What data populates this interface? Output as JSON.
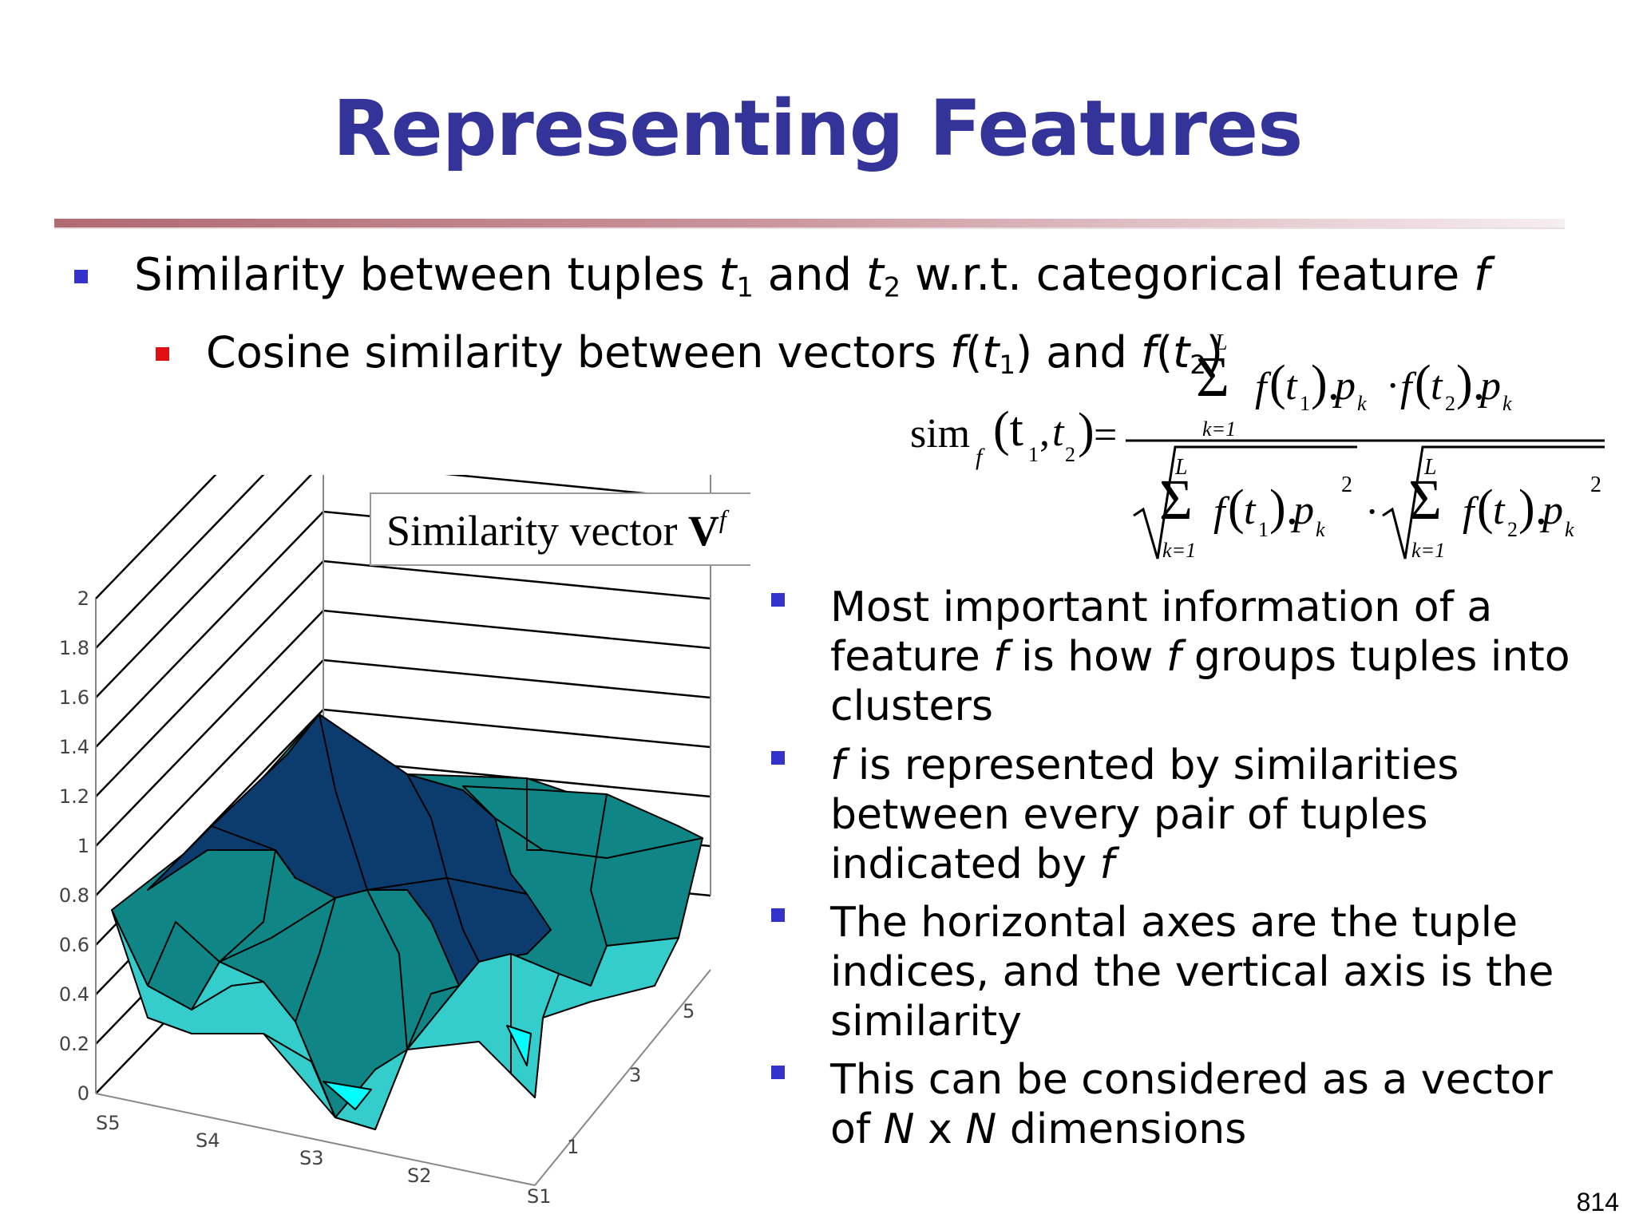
{
  "title": "Representing Features",
  "bullets": {
    "b1": {
      "part1": "Similarity between tuples ",
      "t": "t",
      "sub1": "1",
      "and": " and ",
      "sub2": "2",
      "part2": " w.r.t. categorical feature ",
      "f": "f"
    },
    "b2": {
      "part1": "Cosine similarity between vectors ",
      "f": "f",
      "open": "(",
      "t": "t",
      "sub1": "1",
      "close_and": ") and ",
      "sub2": "2",
      "close": ")"
    },
    "right": [
      {
        "a": "Most important information of a feature ",
        "f1": "f",
        "b": " is how ",
        "f2": "f",
        "c": " groups tuples into clusters"
      },
      {
        "f1": "f",
        "a": "  is represented by similarities between every pair of tuples indicated by ",
        "f2": "f"
      },
      {
        "a": "The horizontal axes are the tuple indices, and the vertical axis is the similarity"
      },
      {
        "a": "This can be considered as a vector of ",
        "n1": "N",
        "x": " x ",
        "n2": "N",
        "b": " dimensions"
      }
    ]
  },
  "formula": {
    "sim": "sim",
    "sub_f": "f",
    "args": "(t",
    "t": "t",
    "one": "1",
    "two": "2",
    "comma": ", ",
    "eq": "=",
    "sum": "Σ",
    "L": "L",
    "k_eq_1": "k=1",
    "f": "f",
    "p": "p",
    "k": "k",
    "dot": "·",
    "sq": "2"
  },
  "chart_label": {
    "text": "Similarity vector ",
    "V": "V",
    "sup": "f"
  },
  "chart_data": {
    "type": "surface",
    "z_ticks": [
      "0",
      "0.2",
      "0.4",
      "0.6",
      "0.8",
      "1",
      "1.2",
      "1.4",
      "1.6",
      "1.8",
      "2"
    ],
    "x_ticks": [
      "S5",
      "S4",
      "S3",
      "S2",
      "S1"
    ],
    "y_ticks": [
      "1",
      "3",
      "5"
    ],
    "zlim": [
      0,
      2
    ],
    "colors": {
      "high": "#0c3b6e",
      "mid": "#0f8585",
      "low": "#35cccc",
      "lowest": "#00ffff"
    }
  },
  "page_number": "814"
}
